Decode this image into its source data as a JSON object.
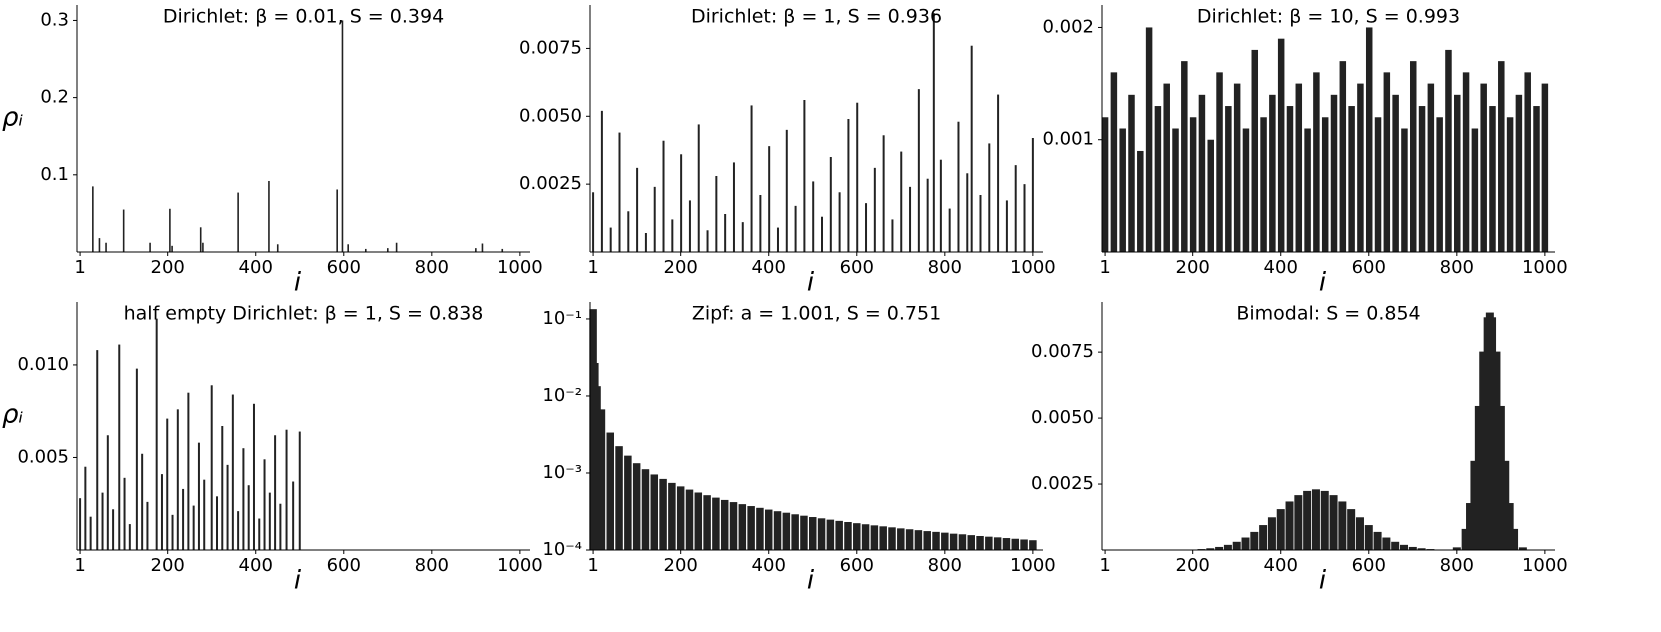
{
  "chart_data": [
    {
      "type": "bar",
      "title": "Dirichlet: β = 0.01, S = 0.394",
      "xlabel": "i",
      "ylabel": "ρᵢ",
      "color": "#222222",
      "x": [
        30,
        45,
        60,
        100,
        160,
        205,
        210,
        275,
        280,
        360,
        430,
        450,
        585,
        597,
        610,
        650,
        700,
        720,
        900,
        915,
        960
      ],
      "values": [
        0.085,
        0.018,
        0.012,
        0.055,
        0.012,
        0.056,
        0.008,
        0.032,
        0.012,
        0.077,
        0.092,
        0.01,
        0.081,
        0.3,
        0.01,
        0.004,
        0.005,
        0.012,
        0.005,
        0.011,
        0.004
      ],
      "xlim": [
        -6,
        1023
      ],
      "ylim": [
        0,
        0.32
      ],
      "xticks": [
        1,
        200,
        400,
        600,
        800,
        1000
      ],
      "yticks": [
        0.1,
        0.2,
        0.3
      ]
    },
    {
      "type": "bar",
      "title": "Dirichlet: β = 1, S = 0.936",
      "xlabel": "i",
      "color": "#222222",
      "x": [
        1,
        21,
        41,
        61,
        81,
        101,
        121,
        141,
        161,
        181,
        201,
        221,
        241,
        261,
        281,
        301,
        321,
        341,
        361,
        381,
        401,
        421,
        441,
        461,
        481,
        501,
        521,
        541,
        561,
        581,
        601,
        621,
        641,
        661,
        681,
        701,
        721,
        741,
        761,
        775,
        791,
        811,
        831,
        851,
        861,
        881,
        901,
        921,
        941,
        961,
        981,
        1000
      ],
      "values": [
        0.0022,
        0.0052,
        0.0009,
        0.0044,
        0.0015,
        0.0031,
        0.0007,
        0.0024,
        0.0041,
        0.0012,
        0.0036,
        0.0019,
        0.0047,
        0.0008,
        0.0028,
        0.0014,
        0.0033,
        0.0011,
        0.0054,
        0.0021,
        0.0039,
        0.0009,
        0.0045,
        0.0017,
        0.0056,
        0.0026,
        0.0013,
        0.0035,
        0.0022,
        0.0049,
        0.0055,
        0.0018,
        0.0031,
        0.0043,
        0.0012,
        0.0037,
        0.0024,
        0.006,
        0.0027,
        0.0088,
        0.0034,
        0.0016,
        0.0048,
        0.0029,
        0.0076,
        0.0021,
        0.004,
        0.0058,
        0.0019,
        0.0032,
        0.0025,
        0.0042
      ],
      "xlim": [
        -6,
        1023
      ],
      "ylim": [
        0,
        0.0091
      ],
      "xticks": [
        1,
        200,
        400,
        600,
        800,
        1000
      ],
      "yticks": [
        0.0025,
        {
          "value": 0.005,
          "label": "0.0050"
        },
        0.0075
      ]
    },
    {
      "type": "bar",
      "title": "Dirichlet: β = 10, S = 0.993",
      "xlabel": "i",
      "color": "#222222",
      "x": [
        1,
        21,
        41,
        61,
        81,
        101,
        121,
        141,
        161,
        181,
        201,
        221,
        241,
        261,
        281,
        301,
        321,
        341,
        361,
        381,
        401,
        421,
        441,
        461,
        481,
        501,
        521,
        541,
        561,
        581,
        601,
        621,
        641,
        661,
        681,
        701,
        721,
        741,
        761,
        781,
        801,
        821,
        841,
        861,
        881,
        901,
        921,
        941,
        961,
        981,
        1000
      ],
      "values": [
        0.0012,
        0.0016,
        0.0011,
        0.0014,
        0.0009,
        0.002,
        0.0013,
        0.0015,
        0.0011,
        0.0017,
        0.0012,
        0.0014,
        0.001,
        0.0016,
        0.0013,
        0.0015,
        0.0011,
        0.0018,
        0.0012,
        0.0014,
        0.0019,
        0.0013,
        0.0015,
        0.0011,
        0.0016,
        0.0012,
        0.0014,
        0.0017,
        0.0013,
        0.0015,
        0.002,
        0.0012,
        0.0016,
        0.0014,
        0.0011,
        0.0017,
        0.0013,
        0.0015,
        0.0012,
        0.0018,
        0.0014,
        0.0016,
        0.0011,
        0.0015,
        0.0013,
        0.0017,
        0.0012,
        0.0014,
        0.0016,
        0.0013,
        0.0015
      ],
      "xlim": [
        -6,
        1023
      ],
      "ylim": [
        0,
        0.0022
      ],
      "xticks": [
        1,
        200,
        400,
        600,
        800,
        1000
      ],
      "yticks": [
        0.001,
        0.002
      ]
    },
    {
      "type": "bar",
      "title": "half empty Dirichlet: β = 1, S = 0.838",
      "xlabel": "i",
      "ylabel": "ρᵢ",
      "color": "#222222",
      "x": [
        1,
        13,
        25,
        40,
        52,
        64,
        76,
        90,
        102,
        114,
        130,
        142,
        154,
        175,
        187,
        199,
        211,
        223,
        235,
        247,
        259,
        271,
        283,
        300,
        312,
        324,
        336,
        348,
        360,
        372,
        384,
        396,
        408,
        420,
        432,
        444,
        456,
        470,
        485,
        500
      ],
      "values": [
        0.0028,
        0.0045,
        0.0018,
        0.0108,
        0.0031,
        0.0062,
        0.0022,
        0.0111,
        0.0039,
        0.0014,
        0.0098,
        0.0052,
        0.0026,
        0.0125,
        0.0041,
        0.0071,
        0.0019,
        0.0076,
        0.0033,
        0.0085,
        0.0024,
        0.0058,
        0.0038,
        0.0089,
        0.0029,
        0.0067,
        0.0046,
        0.0084,
        0.0021,
        0.0055,
        0.0035,
        0.0079,
        0.0017,
        0.0049,
        0.0031,
        0.0062,
        0.0025,
        0.0065,
        0.0037,
        0.0064
      ],
      "xlim": [
        -6,
        1023
      ],
      "ylim": [
        0,
        0.0134
      ],
      "xticks": [
        1,
        200,
        400,
        600,
        800,
        1000
      ],
      "yticks": [
        0.005,
        {
          "value": 0.01,
          "label": "0.010"
        }
      ]
    },
    {
      "type": "bar",
      "title": "Zipf: a = 1.001, S = 0.751",
      "xlabel": "i",
      "color": "#222222",
      "log_y": true,
      "x": [
        1,
        5,
        10,
        20,
        40,
        60,
        80,
        100,
        120,
        140,
        160,
        180,
        200,
        220,
        240,
        260,
        280,
        300,
        320,
        340,
        360,
        380,
        400,
        420,
        440,
        460,
        480,
        500,
        520,
        540,
        560,
        580,
        600,
        620,
        640,
        660,
        680,
        700,
        720,
        740,
        760,
        780,
        800,
        820,
        840,
        860,
        880,
        900,
        920,
        940,
        960,
        980,
        1000
      ],
      "values": [
        0.134,
        0.0268,
        0.0134,
        0.0067,
        0.00335,
        0.00223,
        0.00168,
        0.00134,
        0.00112,
        0.000957,
        0.000838,
        0.000744,
        0.00067,
        0.000609,
        0.000558,
        0.000515,
        0.000479,
        0.000447,
        0.000419,
        0.000394,
        0.000372,
        0.000353,
        0.000335,
        0.000319,
        0.000305,
        0.000291,
        0.000279,
        0.000268,
        0.000258,
        0.000248,
        0.000239,
        0.000231,
        0.000223,
        0.000216,
        0.000209,
        0.000203,
        0.000197,
        0.000191,
        0.000186,
        0.000181,
        0.000176,
        0.000172,
        0.000168,
        0.000163,
        0.00016,
        0.000156,
        0.000152,
        0.000149,
        0.000146,
        0.000143,
        0.00014,
        0.000137,
        0.000134
      ],
      "xlim": [
        -6,
        1023
      ],
      "ylim": [
        0.0001,
        0.166
      ],
      "xticks": [
        1,
        200,
        400,
        600,
        800,
        1000
      ],
      "yticks": [
        {
          "value": 0.0001,
          "label": "10⁻⁴"
        },
        {
          "value": 0.001,
          "label": "10⁻³"
        },
        {
          "value": 0.01,
          "label": "10⁻²"
        },
        {
          "value": 0.1,
          "label": "10⁻¹"
        }
      ]
    },
    {
      "type": "bar",
      "title": "Bimodal: S = 0.854",
      "xlabel": "i",
      "color": "#222222",
      "x": [
        200,
        220,
        240,
        260,
        280,
        300,
        320,
        340,
        360,
        380,
        400,
        420,
        440,
        460,
        480,
        500,
        520,
        540,
        560,
        580,
        600,
        620,
        640,
        660,
        680,
        700,
        720,
        740,
        760,
        800,
        820,
        830,
        840,
        850,
        860,
        870,
        875,
        880,
        890,
        900,
        910,
        920,
        930,
        950
      ],
      "values": [
        1.8e-05,
        3.5e-05,
        6.6e-05,
        0.000116,
        0.000195,
        0.000311,
        0.000473,
        0.000686,
        0.000945,
        0.00124,
        0.00155,
        0.00184,
        0.00208,
        0.00224,
        0.0023,
        0.00224,
        0.00208,
        0.00184,
        0.00155,
        0.00124,
        0.000945,
        0.000686,
        0.000473,
        0.000311,
        0.000195,
        0.000116,
        6.6e-05,
        3.5e-05,
        1.8e-05,
        0.0001,
        0.0008,
        0.00178,
        0.00338,
        0.00546,
        0.00752,
        0.00882,
        0.009,
        0.00882,
        0.00752,
        0.00546,
        0.00338,
        0.00178,
        0.0008,
        0.0001
      ],
      "xlim": [
        -6,
        1023
      ],
      "ylim": [
        0,
        0.0094
      ],
      "xticks": [
        1,
        200,
        400,
        600,
        800,
        1000
      ],
      "yticks": [
        0.0025,
        {
          "value": 0.005,
          "label": "0.0050"
        },
        0.0075
      ]
    }
  ]
}
